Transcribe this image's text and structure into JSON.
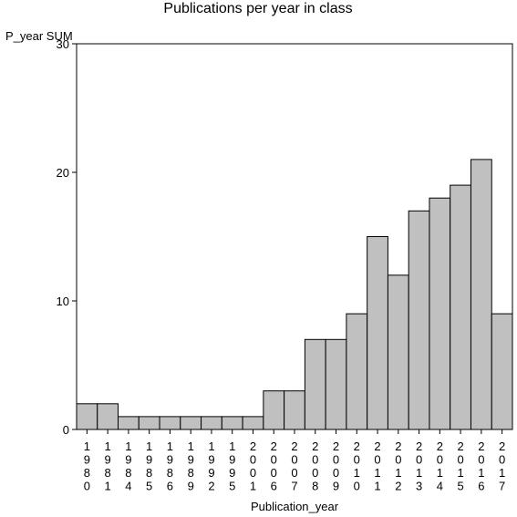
{
  "chart_data": {
    "type": "bar",
    "title": "Publications per year in class",
    "ylabel": "P_year SUM",
    "xlabel": "Publication_year",
    "categories": [
      "1980",
      "1981",
      "1984",
      "1985",
      "1986",
      "1989",
      "1992",
      "1995",
      "2001",
      "2006",
      "2007",
      "2008",
      "2009",
      "2010",
      "2011",
      "2012",
      "2013",
      "2014",
      "2015",
      "2016",
      "2017"
    ],
    "values": [
      2,
      2,
      1,
      1,
      1,
      1,
      1,
      1,
      1,
      3,
      3,
      7,
      7,
      9,
      15,
      12,
      17,
      18,
      19,
      21,
      9
    ],
    "ylim": [
      0,
      30
    ],
    "yticks": [
      0,
      10,
      20,
      30
    ],
    "grid": false,
    "legend": "none",
    "colors": {
      "bar_fill": "#c0c0c0",
      "bar_stroke": "#000000",
      "axis": "#000000"
    }
  }
}
